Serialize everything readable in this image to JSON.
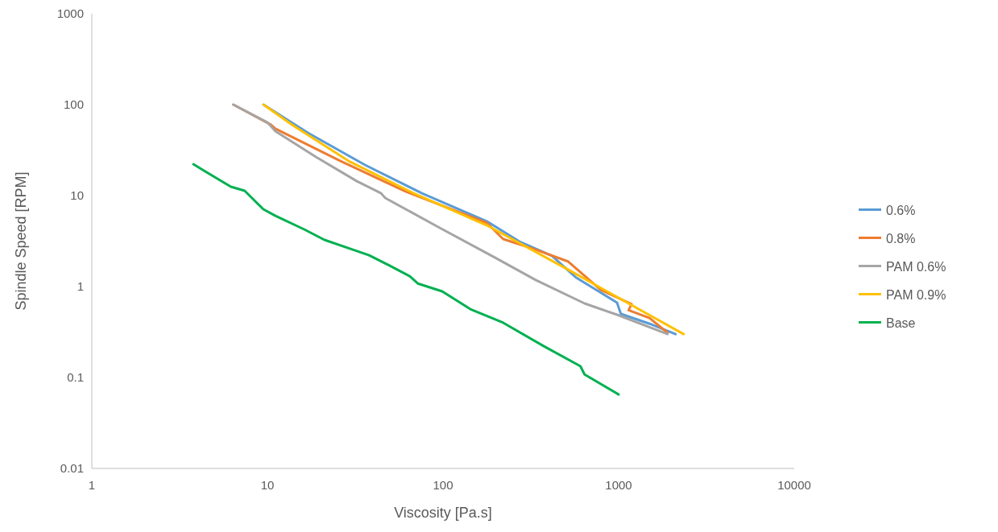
{
  "chart_data": {
    "type": "line",
    "xlabel": "Viscosity [Pa.s]",
    "ylabel": "Spindle Speed [RPM]",
    "log": "xy",
    "xlim": [
      1,
      10000
    ],
    "ylim": [
      0.01,
      1000
    ],
    "xticks": [
      1,
      10,
      100,
      1000,
      10000
    ],
    "yticks": [
      0.01,
      0.1,
      1,
      10,
      100,
      1000
    ],
    "legend": "right",
    "grid": false,
    "marker": "none",
    "series": [
      {
        "name": "0.6%",
        "color": "#5b9bd5",
        "x": [
          9.5,
          17,
          36,
          75.8,
          178,
          272,
          417,
          574,
          979,
          1030,
          1500,
          2110
        ],
        "values": [
          100,
          49,
          21.7,
          10.6,
          5.2,
          3.13,
          2.17,
          1.25,
          0.665,
          0.5,
          0.39,
          0.3
        ]
      },
      {
        "name": "0.8%",
        "color": "#ed7d31",
        "x": [
          6.4,
          10.5,
          11.1,
          26.1,
          61.2,
          178,
          220,
          337,
          517,
          791,
          1185,
          1140,
          1500,
          1900
        ],
        "values": [
          100,
          60,
          54.3,
          24,
          11.1,
          5,
          3.33,
          2.55,
          1.88,
          0.92,
          0.64,
          0.55,
          0.45,
          0.31
        ]
      },
      {
        "name": "PAM 0.6%",
        "color": "#a5a5a5",
        "x": [
          6.4,
          10,
          11.1,
          18.9,
          32.3,
          44.4,
          46.9,
          93.8,
          198,
          337,
          640,
          979,
          1900
        ],
        "values": [
          100,
          63.8,
          51.1,
          26.6,
          14.4,
          10.6,
          9.4,
          4.52,
          2.08,
          1.18,
          0.652,
          0.49,
          0.3
        ]
      },
      {
        "name": "PAM 0.9%",
        "color": "#ffc000",
        "x": [
          9.5,
          13.8,
          29,
          68,
          178,
          517,
          1211,
          2345
        ],
        "values": [
          100,
          60,
          24,
          10.6,
          4.7,
          1.53,
          0.61,
          0.3
        ]
      },
      {
        "name": "Base",
        "color": "#00b050",
        "x": [
          3.79,
          6.19,
          7.42,
          9.48,
          11.1,
          16.2,
          21.1,
          30.6,
          37.9,
          49.5,
          64.6,
          71.8,
          98.9,
          143,
          220,
          375,
          606,
          640,
          1000
        ],
        "values": [
          22.1,
          12.5,
          11.3,
          7.07,
          6,
          4.25,
          3.26,
          2.55,
          2.21,
          1.7,
          1.3,
          1.08,
          0.885,
          0.565,
          0.4,
          0.221,
          0.133,
          0.108,
          0.065
        ]
      }
    ]
  }
}
